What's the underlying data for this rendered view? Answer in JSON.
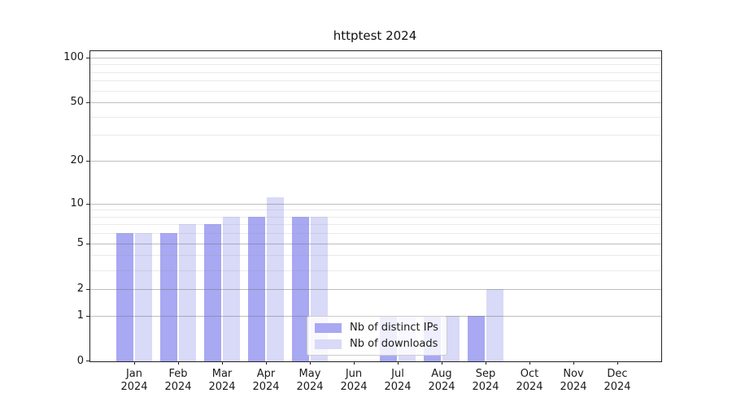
{
  "chart_data": {
    "type": "bar",
    "title": "httptest 2024",
    "categories": [
      "Jan 2024",
      "Feb 2024",
      "Mar 2024",
      "Apr 2024",
      "May 2024",
      "Jun 2024",
      "Jul 2024",
      "Aug 2024",
      "Sep 2024",
      "Oct 2024",
      "Nov 2024",
      "Dec 2024"
    ],
    "series": [
      {
        "name": "Nb of distinct IPs",
        "color": "#a8a8f3",
        "values": [
          6,
          6,
          7,
          8,
          8,
          0,
          1,
          1,
          1,
          0,
          0,
          0
        ]
      },
      {
        "name": "Nb of downloads",
        "color": "#d9d9f8",
        "values": [
          6,
          7,
          8,
          11,
          8,
          0,
          1,
          1,
          2,
          0,
          0,
          0
        ]
      }
    ],
    "yscale": "log1p",
    "ylim": [
      0,
      110
    ],
    "y_major_ticks": [
      0,
      1,
      2,
      5,
      10,
      20,
      50,
      100
    ],
    "y_minor_gridlines": [
      3,
      4,
      6,
      7,
      8,
      9,
      30,
      40,
      60,
      70,
      80,
      90
    ],
    "grid": "on",
    "legend_position": "lower-center-inside"
  }
}
